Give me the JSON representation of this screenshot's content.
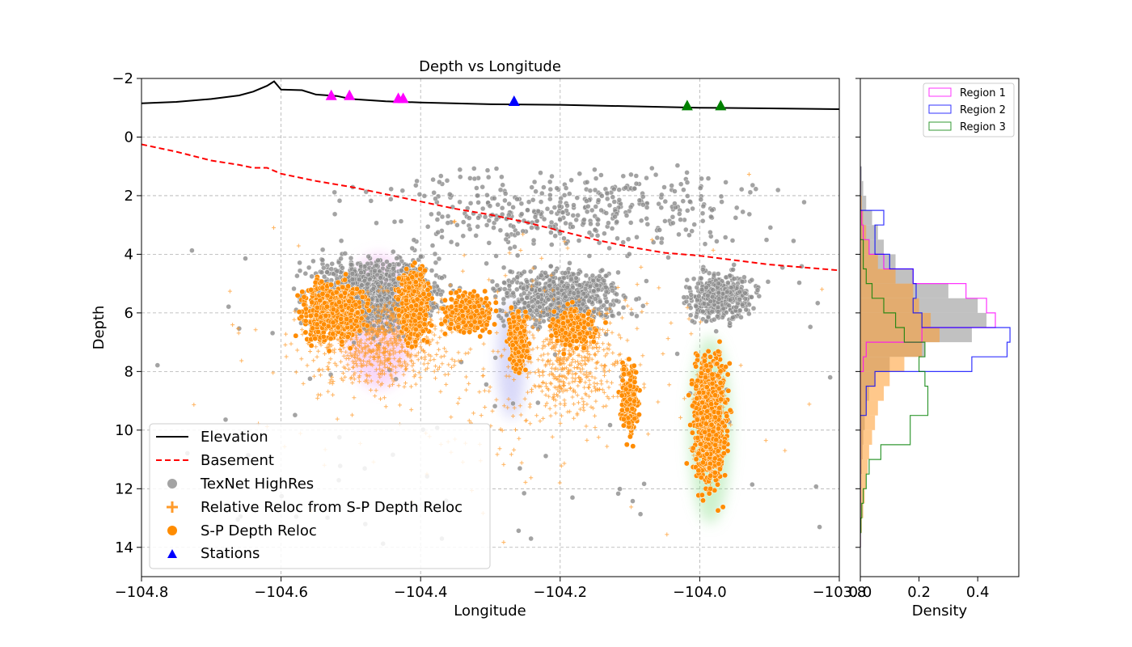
{
  "chart_data": [
    {
      "type": "scatter",
      "title": "Depth vs Longitude",
      "xlabel": "Longitude",
      "ylabel": "Depth",
      "xlim": [
        -104.8,
        -103.8
      ],
      "ylim": [
        15,
        -2
      ],
      "y_inverted": true,
      "grid": true,
      "xticks": [
        "−104.8",
        "−104.6",
        "−104.4",
        "−104.2",
        "−104.0",
        "−103.8"
      ],
      "yticks": [
        "−2",
        "0",
        "2",
        "4",
        "6",
        "8",
        "10",
        "12",
        "14"
      ],
      "legend_position": "lower-left",
      "legend": [
        "Elevation",
        "Basement",
        "TexNet HighRes",
        "Relative Reloc from S-P Depth Reloc",
        "S-P Depth Reloc",
        "Stations"
      ],
      "colors": {
        "elevation": "#000000",
        "basement": "#ff0000",
        "texnet": "#8c8c8c",
        "relreloc": "#ff9b2b",
        "spreloc": "#ff8c00",
        "region1": "#ff00ff",
        "region2": "#0000ff",
        "region3": "#008000"
      },
      "elevation_line": [
        [
          -104.8,
          -1.15
        ],
        [
          -104.75,
          -1.2
        ],
        [
          -104.7,
          -1.3
        ],
        [
          -104.66,
          -1.42
        ],
        [
          -104.64,
          -1.55
        ],
        [
          -104.62,
          -1.75
        ],
        [
          -104.61,
          -1.9
        ],
        [
          -104.6,
          -1.62
        ],
        [
          -104.57,
          -1.6
        ],
        [
          -104.55,
          -1.45
        ],
        [
          -104.52,
          -1.4
        ],
        [
          -104.5,
          -1.3
        ],
        [
          -104.45,
          -1.22
        ],
        [
          -104.4,
          -1.18
        ],
        [
          -104.3,
          -1.12
        ],
        [
          -104.2,
          -1.1
        ],
        [
          -104.1,
          -1.05
        ],
        [
          -104.0,
          -1.0
        ],
        [
          -103.9,
          -0.98
        ],
        [
          -103.8,
          -0.95
        ]
      ],
      "basement_line": [
        [
          -104.8,
          0.25
        ],
        [
          -104.75,
          0.5
        ],
        [
          -104.7,
          0.8
        ],
        [
          -104.66,
          0.95
        ],
        [
          -104.64,
          1.05
        ],
        [
          -104.62,
          1.05
        ],
        [
          -104.6,
          1.25
        ],
        [
          -104.55,
          1.5
        ],
        [
          -104.5,
          1.7
        ],
        [
          -104.45,
          1.95
        ],
        [
          -104.4,
          2.2
        ],
        [
          -104.35,
          2.45
        ],
        [
          -104.3,
          2.65
        ],
        [
          -104.25,
          2.9
        ],
        [
          -104.2,
          3.2
        ],
        [
          -104.15,
          3.5
        ],
        [
          -104.1,
          3.75
        ],
        [
          -104.05,
          3.95
        ],
        [
          -104.0,
          4.05
        ],
        [
          -103.95,
          4.2
        ],
        [
          -103.9,
          4.35
        ],
        [
          -103.85,
          4.45
        ],
        [
          -103.8,
          4.55
        ]
      ],
      "stations": [
        {
          "lon": -104.528,
          "depth": -1.4,
          "region": "Region 1"
        },
        {
          "lon": -104.502,
          "depth": -1.4,
          "region": "Region 1"
        },
        {
          "lon": -104.432,
          "depth": -1.3,
          "region": "Region 1"
        },
        {
          "lon": -104.425,
          "depth": -1.3,
          "region": "Region 1"
        },
        {
          "lon": -104.266,
          "depth": -1.2,
          "region": "Region 2"
        },
        {
          "lon": -104.018,
          "depth": -1.05,
          "region": "Region 3"
        },
        {
          "lon": -103.97,
          "depth": -1.05,
          "region": "Region 3"
        }
      ],
      "clusters": [
        {
          "name": "TexNet HighRes",
          "style": "gray-dot",
          "groups": [
            {
              "lon": [
                -104.6,
                -104.33
              ],
              "depth": [
                3.5,
                7.2
              ],
              "n": 1100
            },
            {
              "lon": [
                -104.33,
                -104.07
              ],
              "depth": [
                4.0,
                7.0
              ],
              "n": 700
            },
            {
              "lon": [
                -104.04,
                -103.9
              ],
              "depth": [
                4.2,
                6.8
              ],
              "n": 450
            },
            {
              "lon": [
                -104.58,
                -103.8
              ],
              "depth": [
                0.5,
                4.5
              ],
              "n": 420
            },
            {
              "lon": [
                -104.78,
                -103.8
              ],
              "depth": [
                3.5,
                14.0
              ],
              "n": 90
            }
          ]
        },
        {
          "name": "Relative Reloc from S-P Depth Reloc",
          "style": "orange-plus",
          "groups": [
            {
              "lon": [
                -104.62,
                -104.3
              ],
              "depth": [
                4.5,
                9.5
              ],
              "n": 700
            },
            {
              "lon": [
                -104.3,
                -104.07
              ],
              "depth": [
                5.0,
                10.5
              ],
              "n": 450
            },
            {
              "lon": [
                -104.02,
                -103.95
              ],
              "depth": [
                7.0,
                12.5
              ],
              "n": 300
            },
            {
              "lon": [
                -104.8,
                -103.8
              ],
              "depth": [
                1.0,
                14.8
              ],
              "n": 260
            }
          ]
        },
        {
          "name": "S-P Depth Reloc",
          "style": "orange-dot",
          "groups": [
            {
              "lon": [
                -104.59,
                -104.46
              ],
              "depth": [
                4.5,
                7.5
              ],
              "n": 650
            },
            {
              "lon": [
                -104.44,
                -104.38
              ],
              "depth": [
                4.0,
                7.5
              ],
              "n": 550
            },
            {
              "lon": [
                -104.38,
                -104.28
              ],
              "depth": [
                5.0,
                7.0
              ],
              "n": 350
            },
            {
              "lon": [
                -104.28,
                -104.24
              ],
              "depth": [
                5.5,
                8.5
              ],
              "n": 250
            },
            {
              "lon": [
                -104.23,
                -104.13
              ],
              "depth": [
                5.5,
                7.5
              ],
              "n": 200
            },
            {
              "lon": [
                -104.12,
                -104.08
              ],
              "depth": [
                7.0,
                10.8
              ],
              "n": 180
            },
            {
              "lon": [
                -104.02,
                -103.95
              ],
              "depth": [
                6.5,
                12.9
              ],
              "n": 800
            }
          ]
        }
      ],
      "density_clouds": [
        {
          "region": "Region 1",
          "lon": -104.46,
          "depth": 6.3,
          "rx": 0.05,
          "ry": 2.3
        },
        {
          "region": "Region 2",
          "lon": -104.27,
          "depth": 7.6,
          "rx": 0.02,
          "ry": 2.0
        },
        {
          "region": "Region 3",
          "lon": -103.985,
          "depth": 10.0,
          "rx": 0.03,
          "ry": 3.2
        }
      ]
    },
    {
      "type": "histogram",
      "orientation": "horizontal",
      "xlabel": "Density",
      "xlim": [
        0,
        0.54
      ],
      "xticks": [
        "0.0",
        "0.2",
        "0.4"
      ],
      "ylim": [
        15,
        -2
      ],
      "legend_position": "top-right",
      "legend": [
        "Region 1",
        "Region 2",
        "Region 3"
      ],
      "bins_depth_edges": [
        1.0,
        1.5,
        2.0,
        2.5,
        3.0,
        3.5,
        4.0,
        4.5,
        5.0,
        5.5,
        6.0,
        6.5,
        7.0,
        7.5,
        8.0,
        8.5,
        9.0,
        9.5,
        10.0,
        10.5,
        11.0,
        11.5,
        12.0,
        12.5,
        13.0,
        13.5,
        14.0
      ],
      "series": [
        {
          "name": "TexNet HighRes",
          "style": "gray-fill",
          "values": [
            0.005,
            0.01,
            0.02,
            0.04,
            0.06,
            0.08,
            0.12,
            0.18,
            0.3,
            0.4,
            0.43,
            0.38,
            0.22,
            0.1,
            0.05,
            0.03,
            0.02,
            0.015,
            0.01,
            0.008,
            0.005,
            0.003,
            0.002,
            0.001,
            0.001,
            0.0
          ]
        },
        {
          "name": "S-P Depth Reloc",
          "style": "orange-fill",
          "values": [
            0.0,
            0.002,
            0.005,
            0.01,
            0.02,
            0.03,
            0.06,
            0.12,
            0.18,
            0.2,
            0.24,
            0.27,
            0.21,
            0.15,
            0.1,
            0.08,
            0.06,
            0.05,
            0.04,
            0.03,
            0.025,
            0.02,
            0.015,
            0.01,
            0.005,
            0.002
          ]
        },
        {
          "name": "Region 1",
          "style": "magenta-step",
          "values": [
            0.0,
            0.0,
            0.0,
            0.005,
            0.01,
            0.03,
            0.08,
            0.18,
            0.36,
            0.43,
            0.46,
            0.21,
            0.02,
            0.01,
            0.0,
            0.0,
            0.0,
            0.0,
            0.0,
            0.0,
            0.0,
            0.0,
            0.0,
            0.0,
            0.0,
            0.0
          ]
        },
        {
          "name": "Region 2",
          "style": "blue-step",
          "values": [
            0.0,
            0.0,
            0.0,
            0.08,
            0.05,
            0.05,
            0.1,
            0.18,
            0.19,
            0.18,
            0.21,
            0.51,
            0.5,
            0.38,
            0.05,
            0.02,
            0.02,
            0.0,
            0.0,
            0.0,
            0.0,
            0.0,
            0.0,
            0.0,
            0.0,
            0.0
          ]
        },
        {
          "name": "Region 3",
          "style": "green-step",
          "values": [
            0.0,
            0.0,
            0.0,
            0.0,
            0.0,
            0.01,
            0.01,
            0.02,
            0.04,
            0.08,
            0.12,
            0.15,
            0.22,
            0.2,
            0.22,
            0.23,
            0.23,
            0.17,
            0.17,
            0.07,
            0.03,
            0.02,
            0.01,
            0.005,
            0.002,
            0.0
          ]
        }
      ]
    }
  ]
}
